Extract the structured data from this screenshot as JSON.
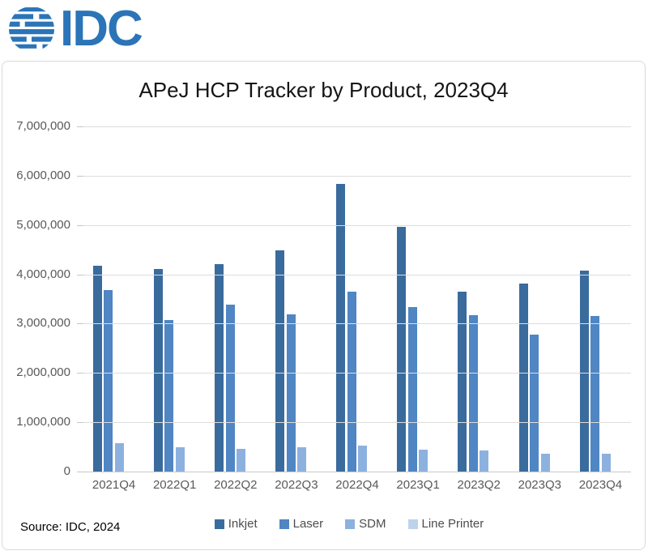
{
  "logo": {
    "text": "IDC",
    "color": "#2B74B8"
  },
  "source_note": "Source: IDC, 2024",
  "chart_data": {
    "type": "bar",
    "title": "APeJ HCP Tracker by Product, 2023Q4",
    "categories": [
      "2021Q4",
      "2022Q1",
      "2022Q2",
      "2022Q3",
      "2022Q4",
      "2023Q1",
      "2023Q2",
      "2023Q3",
      "2023Q4"
    ],
    "series": [
      {
        "name": "Inkjet",
        "color": "#3A6B9D",
        "values": [
          4170000,
          4100000,
          4210000,
          4490000,
          5840000,
          4970000,
          3640000,
          3820000,
          4070000
        ]
      },
      {
        "name": "Laser",
        "color": "#4F86C3",
        "values": [
          3680000,
          3080000,
          3380000,
          3190000,
          3650000,
          3330000,
          3170000,
          2770000,
          3150000
        ]
      },
      {
        "name": "SDM",
        "color": "#8DB1DF",
        "values": [
          580000,
          500000,
          460000,
          500000,
          520000,
          440000,
          430000,
          360000,
          360000
        ]
      },
      {
        "name": "Line Printer",
        "color": "#BDD3EC",
        "values": [
          0,
          0,
          0,
          0,
          0,
          0,
          0,
          0,
          0
        ]
      }
    ],
    "ylim": [
      0,
      7000000
    ],
    "ytick_step": 1000000,
    "ytick_labels": [
      "7,000,000",
      "6,000,000",
      "5,000,000",
      "4,000,000",
      "3,000,000",
      "2,000,000",
      "1,000,000",
      "0"
    ],
    "xlabel": "",
    "ylabel": "",
    "grid": true,
    "legend_position": "bottom"
  }
}
